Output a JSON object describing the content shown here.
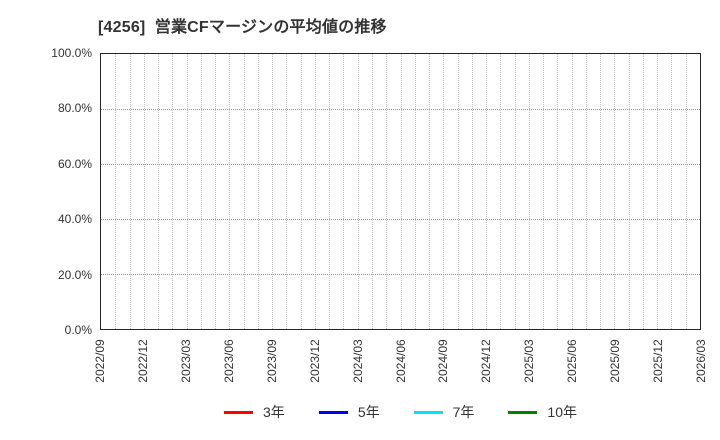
{
  "chart_data": {
    "type": "line",
    "title": "[4256]  営業CFマージンの平均値の推移",
    "x_tick_labels": [
      "2022/09",
      "2022/12",
      "2023/03",
      "2023/06",
      "2023/09",
      "2023/12",
      "2024/03",
      "2024/06",
      "2024/09",
      "2024/12",
      "2025/03",
      "2025/06",
      "2025/09",
      "2025/12",
      "2026/03"
    ],
    "x_total_months": 42,
    "x_gridline_every_month": true,
    "y_tick_labels": [
      "0.0%",
      "20.0%",
      "40.0%",
      "60.0%",
      "80.0%",
      "100.0%"
    ],
    "ylim": [
      0,
      100
    ],
    "y_step": 20,
    "y_unit": "%",
    "grid": "dotted",
    "plot_is_empty": true,
    "legend_position": "bottom-center",
    "series": [
      {
        "name": "3年",
        "color": "#ff0000",
        "values": []
      },
      {
        "name": "5年",
        "color": "#0000ee",
        "values": []
      },
      {
        "name": "7年",
        "color": "#00e5ee",
        "values": []
      },
      {
        "name": "10年",
        "color": "#008000",
        "values": []
      }
    ]
  }
}
